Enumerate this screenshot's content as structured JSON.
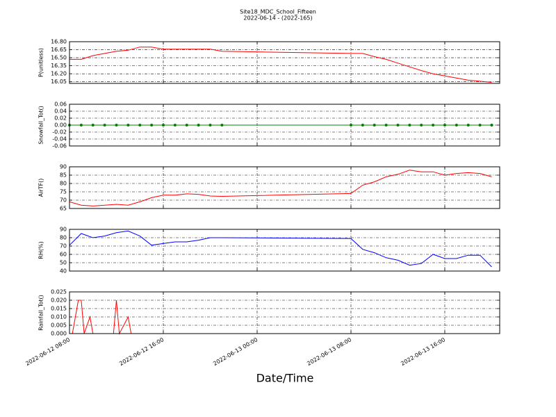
{
  "chart_data": [
    {
      "type": "line",
      "title": "Site18_MDC_School_Fifteen",
      "subtitle": "2022-06-14 - (2022-165)",
      "ylabel": "P(unitless)",
      "color": "#ff0000",
      "grid": true,
      "x": [
        "2022-06-12 08:00",
        "2022-06-12 09:00",
        "2022-06-12 10:00",
        "2022-06-12 11:00",
        "2022-06-12 12:00",
        "2022-06-12 13:00",
        "2022-06-12 14:00",
        "2022-06-12 15:00",
        "2022-06-12 16:00",
        "2022-06-12 17:00",
        "2022-06-12 18:00",
        "2022-06-12 19:00",
        "2022-06-12 20:00",
        "2022-06-12 21:00",
        "2022-06-13 08:00",
        "2022-06-13 09:00",
        "2022-06-13 10:00",
        "2022-06-13 11:00",
        "2022-06-13 12:00",
        "2022-06-13 13:00",
        "2022-06-13 14:00",
        "2022-06-13 15:00",
        "2022-06-13 16:00",
        "2022-06-13 17:00",
        "2022-06-13 18:00",
        "2022-06-13 19:00",
        "2022-06-13 20:00"
      ],
      "values": [
        16.47,
        16.47,
        16.54,
        16.58,
        16.62,
        16.64,
        16.7,
        16.7,
        16.66,
        16.66,
        16.66,
        16.66,
        16.66,
        16.62,
        16.58,
        16.58,
        16.52,
        16.47,
        16.4,
        16.33,
        16.26,
        16.2,
        16.16,
        16.12,
        16.08,
        16.06,
        16.04
      ],
      "ylim": [
        16.02,
        16.8
      ],
      "yticks": [
        16.05,
        {
          "value": 16.2,
          "label": "16.20"
        },
        16.35,
        {
          "value": 16.5,
          "label": "16.50"
        },
        16.65,
        {
          "value": 16.8,
          "label": "16.80"
        }
      ]
    },
    {
      "type": "line",
      "ylabel": "Snowfall_Tot()",
      "color": "#008000",
      "marker": "o",
      "grid": true,
      "x": [
        "2022-06-12 08:00",
        "2022-06-12 09:00",
        "2022-06-12 10:00",
        "2022-06-12 11:00",
        "2022-06-12 12:00",
        "2022-06-12 13:00",
        "2022-06-12 14:00",
        "2022-06-12 15:00",
        "2022-06-12 16:00",
        "2022-06-12 17:00",
        "2022-06-12 18:00",
        "2022-06-12 19:00",
        "2022-06-12 20:00",
        "2022-06-12 21:00",
        "2022-06-13 08:00",
        "2022-06-13 09:00",
        "2022-06-13 10:00",
        "2022-06-13 11:00",
        "2022-06-13 12:00",
        "2022-06-13 13:00",
        "2022-06-13 14:00",
        "2022-06-13 15:00",
        "2022-06-13 16:00",
        "2022-06-13 17:00",
        "2022-06-13 18:00",
        "2022-06-13 19:00",
        "2022-06-13 20:00"
      ],
      "values": [
        0,
        0,
        0,
        0,
        0,
        0,
        0,
        0,
        0,
        0,
        0,
        0,
        0,
        0,
        0,
        0,
        0,
        0,
        0,
        0,
        0,
        0,
        0,
        0,
        0,
        0,
        0
      ],
      "ylim": [
        -0.06,
        0.06
      ],
      "yticks": [
        -0.06,
        -0.04,
        -0.02,
        {
          "value": 0,
          "label": "0.00"
        },
        0.02,
        0.04,
        0.06
      ]
    },
    {
      "type": "line",
      "ylabel": "AirTF()",
      "color": "#ff0000",
      "grid": true,
      "x": [
        "2022-06-12 08:00",
        "2022-06-12 09:00",
        "2022-06-12 10:00",
        "2022-06-12 11:00",
        "2022-06-12 12:00",
        "2022-06-12 13:00",
        "2022-06-12 14:00",
        "2022-06-12 15:00",
        "2022-06-12 16:00",
        "2022-06-12 17:00",
        "2022-06-12 18:00",
        "2022-06-12 19:00",
        "2022-06-12 20:00",
        "2022-06-12 21:00",
        "2022-06-13 08:00",
        "2022-06-13 09:00",
        "2022-06-13 10:00",
        "2022-06-13 11:00",
        "2022-06-13 12:00",
        "2022-06-13 13:00",
        "2022-06-13 14:00",
        "2022-06-13 15:00",
        "2022-06-13 16:00",
        "2022-06-13 17:00",
        "2022-06-13 18:00",
        "2022-06-13 19:00",
        "2022-06-13 20:00"
      ],
      "values": [
        69,
        67,
        66.5,
        67,
        67.5,
        67,
        69,
        71.5,
        73,
        73,
        73.8,
        73.5,
        72.5,
        72.3,
        74,
        79,
        81,
        84,
        85.5,
        88,
        87,
        87,
        85,
        86,
        86.5,
        86,
        84
      ],
      "ylim": [
        65,
        90
      ],
      "yticks": [
        65,
        70,
        75,
        80,
        85,
        90
      ]
    },
    {
      "type": "line",
      "ylabel": "RH(%)",
      "color": "#0000ff",
      "grid": true,
      "x": [
        "2022-06-12 08:00",
        "2022-06-12 09:00",
        "2022-06-12 10:00",
        "2022-06-12 11:00",
        "2022-06-12 12:00",
        "2022-06-12 13:00",
        "2022-06-12 14:00",
        "2022-06-12 15:00",
        "2022-06-12 16:00",
        "2022-06-12 17:00",
        "2022-06-12 18:00",
        "2022-06-12 19:00",
        "2022-06-12 20:00",
        "2022-06-12 21:00",
        "2022-06-13 08:00",
        "2022-06-13 09:00",
        "2022-06-13 10:00",
        "2022-06-13 11:00",
        "2022-06-13 12:00",
        "2022-06-13 13:00",
        "2022-06-13 14:00",
        "2022-06-13 15:00",
        "2022-06-13 16:00",
        "2022-06-13 17:00",
        "2022-06-13 18:00",
        "2022-06-13 19:00",
        "2022-06-13 20:00"
      ],
      "values": [
        71,
        85,
        80,
        82,
        86,
        88,
        82,
        71,
        73,
        75,
        75,
        77,
        80,
        80,
        79,
        66,
        62,
        56,
        53,
        47,
        49,
        60,
        55,
        55,
        59,
        59,
        45
      ],
      "ylim": [
        40,
        90
      ],
      "yticks": [
        40,
        50,
        60,
        70,
        80,
        90
      ]
    },
    {
      "type": "line",
      "ylabel": "Rainfall_Tot()",
      "xlabel": "Date/Time",
      "color": "#ff0000",
      "grid": true,
      "x": [
        "2022-06-12 08:00",
        "2022-06-12 08:15",
        "2022-06-12 08:45",
        "2022-06-12 09:00",
        "2022-06-12 09:15",
        "2022-06-12 09:45",
        "2022-06-12 10:00",
        "2022-06-12 11:45",
        "2022-06-12 12:00",
        "2022-06-12 12:15",
        "2022-06-12 13:00",
        "2022-06-12 13:15",
        "2022-06-13 20:00"
      ],
      "values": [
        0,
        0,
        0.02,
        0.02,
        0,
        0.01,
        0,
        0,
        0.02,
        0,
        0.01,
        0,
        0
      ],
      "ylim": [
        0,
        0.025
      ],
      "yticks": [
        {
          "value": 0,
          "label": "0.000"
        },
        0.005,
        {
          "value": 0.01,
          "label": "0.010"
        },
        0.015,
        {
          "value": 0.02,
          "label": "0.020"
        },
        0.025
      ],
      "xlim": [
        "2022-06-12 08:00",
        "2022-06-13 20:41"
      ],
      "xticks": [
        "2022-06-12 08:00",
        "2022-06-12 16:00",
        "2022-06-13 00:00",
        "2022-06-13 08:00",
        "2022-06-13 16:00"
      ]
    }
  ]
}
